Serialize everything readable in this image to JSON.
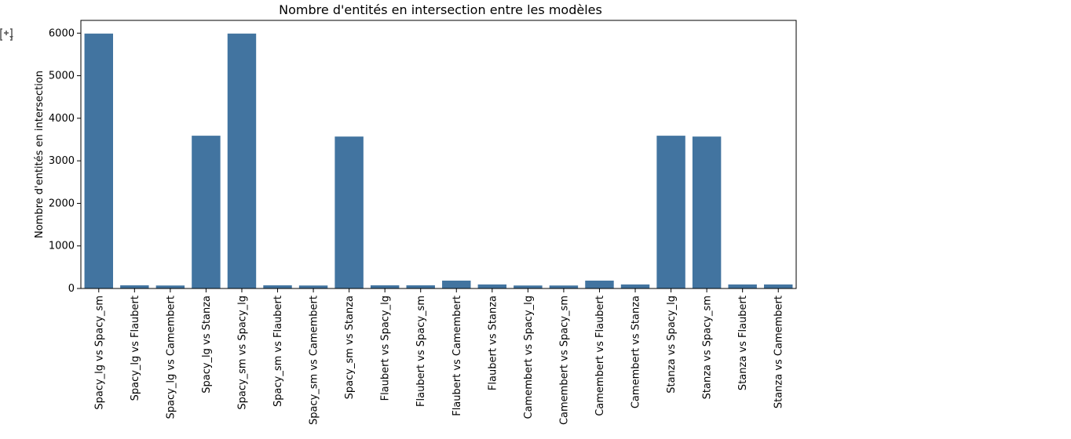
{
  "chart_data": {
    "type": "bar",
    "title": "Nombre d'entités en intersection entre les modèles",
    "xlabel": "",
    "ylabel": "Nombre d'entités en intersection",
    "ylim": [
      0,
      6300
    ],
    "yticks": [
      0,
      1000,
      2000,
      3000,
      4000,
      5000,
      6000
    ],
    "grid": false,
    "bar_color": "#4274a0",
    "categories": [
      "Spacy_lg vs Spacy_sm",
      "Spacy_lg vs Flaubert",
      "Spacy_lg vs Camembert",
      "Spacy_lg vs Stanza",
      "Spacy_sm vs Spacy_lg",
      "Spacy_sm vs Flaubert",
      "Spacy_sm vs Camembert",
      "Spacy_sm vs Stanza",
      "Flaubert vs Spacy_lg",
      "Flaubert vs Spacy_sm",
      "Flaubert vs Camembert",
      "Flaubert vs Stanza",
      "Camembert vs Spacy_lg",
      "Camembert vs Spacy_sm",
      "Camembert vs Flaubert",
      "Camembert vs Stanza",
      "Stanza vs Spacy_lg",
      "Stanza vs Spacy_sm",
      "Stanza vs Flaubert",
      "Stanza vs Camembert"
    ],
    "values": [
      5990,
      75,
      70,
      3590,
      5990,
      75,
      70,
      3570,
      75,
      75,
      185,
      95,
      70,
      70,
      185,
      95,
      3590,
      3570,
      95,
      95
    ]
  },
  "ui": {
    "output_icon": "output-toggle-icon"
  }
}
